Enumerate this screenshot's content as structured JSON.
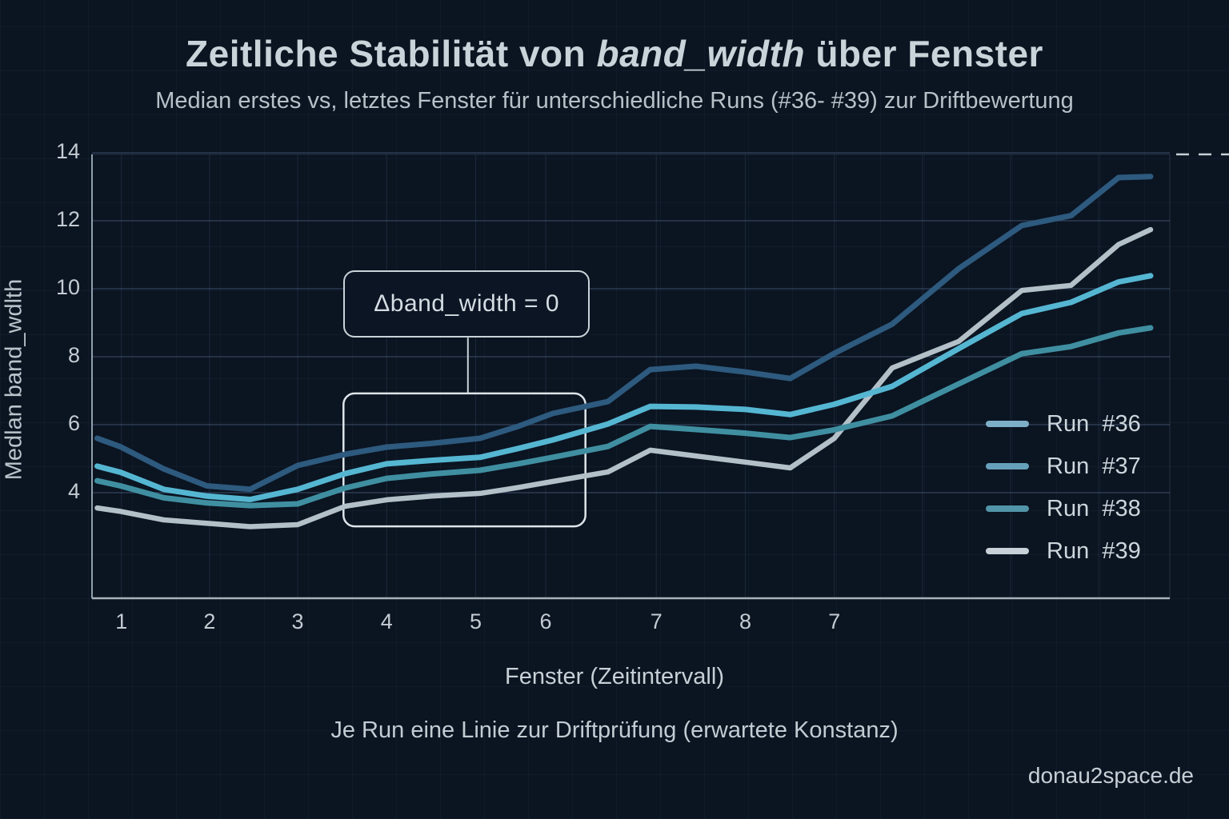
{
  "colors": {
    "background": "#0b1421",
    "panel_border": "#8fa0ad",
    "axis_bottom": "#a7b2ba",
    "major_gridline": "#2c3b53",
    "minor_gridline": "rgba(125,155,205,0.13)",
    "annotation_border": "#c9d3d9",
    "highlight_border": "#dde5e9"
  },
  "title": {
    "prefix": "Zeitliche Stabilität von ",
    "emphasis": "band_width",
    "suffix": " über Fenster"
  },
  "subtitle": "Median erstes vs, letztes Fenster für unterschiedliche Runs (#36- #39) zur Driftbewertung",
  "caption": "Je Run eine Linie zur Driftprüfung (erwartete Konstanz)",
  "watermark": "donau2space.de",
  "chart_data": {
    "type": "line",
    "title": "Zeitliche Stabilität von band_width über Fenster",
    "xlabel": "Fenster (Zeitintervall)",
    "ylabel": "Medlan band_wdlth",
    "xlim": [
      0.67,
      13.15
    ],
    "ylim": [
      0.9,
      14
    ],
    "grid": true,
    "legend_position": "right",
    "x_ticks": {
      "labels": [
        "1",
        "2",
        "3",
        "4",
        "5",
        "6",
        "7",
        "8",
        "7"
      ],
      "positions": [
        1.01,
        2.03,
        3.05,
        4.08,
        5.11,
        5.92,
        7.2,
        8.23,
        9.26
      ]
    },
    "y_ticks": {
      "labels": [
        "4",
        "6",
        "8",
        "10",
        "12",
        "14"
      ],
      "values": [
        4,
        6,
        8,
        10,
        12,
        14
      ]
    },
    "grid_x_extra": [
      10.28,
      11.3,
      12.32
    ],
    "x": [
      0.73,
      1.0,
      1.5,
      2.0,
      2.5,
      3.05,
      3.6,
      4.08,
      4.6,
      5.16,
      5.6,
      6.0,
      6.64,
      7.13,
      7.66,
      8.23,
      8.75,
      9.26,
      9.93,
      10.7,
      11.43,
      12.0,
      12.55,
      12.92
    ],
    "series": [
      {
        "name": "Run  #36",
        "color": "#2d5a7e",
        "swatch": "#7dafc7",
        "stroke_width": 7,
        "values": [
          5.6,
          5.35,
          4.7,
          4.2,
          4.1,
          4.8,
          5.13,
          5.34,
          5.45,
          5.6,
          5.95,
          6.33,
          6.68,
          7.62,
          7.72,
          7.55,
          7.36,
          8.1,
          8.96,
          10.59,
          11.86,
          12.15,
          13.27,
          13.3
        ]
      },
      {
        "name": "Run  #37",
        "color": "#55b6d2",
        "swatch": "#66a0bb",
        "stroke_width": 7,
        "values": [
          4.78,
          4.6,
          4.1,
          3.9,
          3.8,
          4.1,
          4.56,
          4.85,
          4.95,
          5.04,
          5.3,
          5.55,
          6.02,
          6.54,
          6.52,
          6.45,
          6.3,
          6.6,
          7.13,
          8.24,
          9.27,
          9.6,
          10.2,
          10.38
        ]
      },
      {
        "name": "Run  #38",
        "color": "#3f8fa1",
        "swatch": "#5295a9",
        "stroke_width": 7,
        "values": [
          4.35,
          4.2,
          3.85,
          3.7,
          3.62,
          3.67,
          4.14,
          4.42,
          4.55,
          4.66,
          4.85,
          5.04,
          5.36,
          5.95,
          5.86,
          5.75,
          5.62,
          5.85,
          6.26,
          7.2,
          8.09,
          8.3,
          8.7,
          8.85
        ]
      },
      {
        "name": "Run  #39",
        "color": "#b3c0c8",
        "swatch": "#c8d1d7",
        "stroke_width": 6.5,
        "values": [
          3.55,
          3.45,
          3.2,
          3.1,
          3.0,
          3.06,
          3.6,
          3.79,
          3.9,
          3.98,
          4.15,
          4.33,
          4.61,
          5.25,
          5.08,
          4.9,
          4.73,
          5.6,
          7.67,
          8.45,
          9.95,
          10.1,
          11.3,
          11.74
        ]
      }
    ],
    "annotation": {
      "text": "Δband_width = 0",
      "label_box_x": [
        3.58,
        6.43
      ],
      "label_box_y": [
        8.56,
        10.54
      ],
      "connector_x": 5.02,
      "highlight_box_x": [
        3.58,
        6.38
      ],
      "highlight_box_y": [
        3.01,
        6.92
      ]
    }
  }
}
